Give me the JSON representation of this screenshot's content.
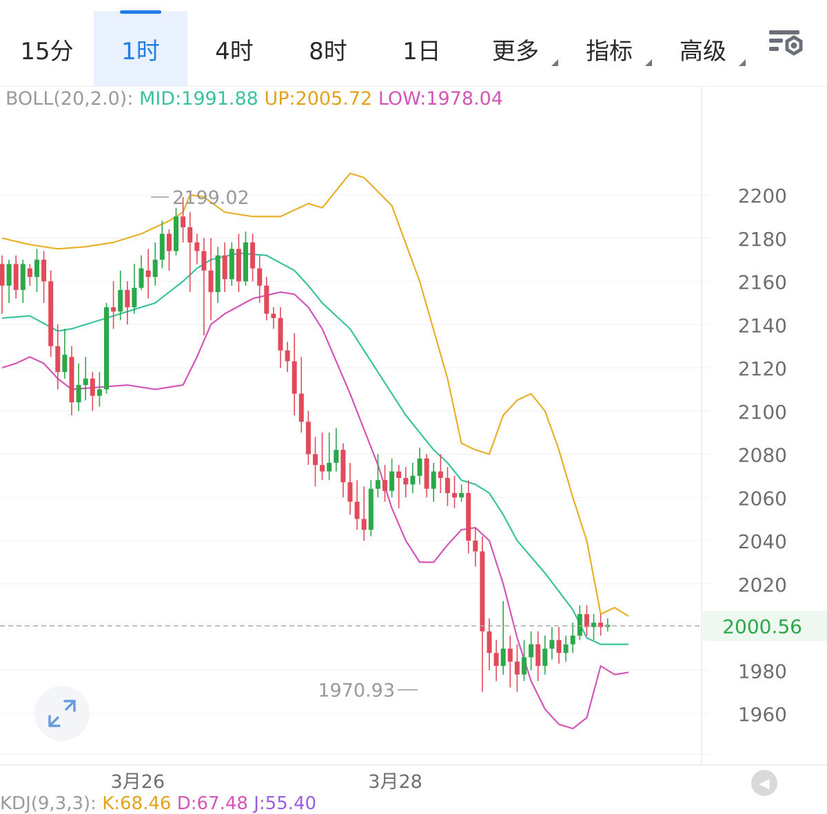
{
  "tabs": [
    {
      "label": "15分",
      "active": false,
      "dropdown": false
    },
    {
      "label": "1时",
      "active": true,
      "dropdown": false
    },
    {
      "label": "4时",
      "active": false,
      "dropdown": false
    },
    {
      "label": "8时",
      "active": false,
      "dropdown": false
    },
    {
      "label": "1日",
      "active": false,
      "dropdown": false
    },
    {
      "label": "更多",
      "active": false,
      "dropdown": true
    },
    {
      "label": "指标",
      "active": false,
      "dropdown": true
    },
    {
      "label": "高级",
      "active": false,
      "dropdown": true
    }
  ],
  "settings_icon": "chart-settings-icon",
  "indicator": {
    "name": "BOLL(20,2.0):",
    "mid": "MID:1991.88",
    "up": "UP:2005.72",
    "low": "LOW:1978.04"
  },
  "kdj": {
    "name": "KDJ(9,3,3):",
    "k": "K:68.46",
    "d": "D:67.48",
    "j": "J:55.40"
  },
  "colors": {
    "accent": "#1e7ee6",
    "up_candle": "#2aa84a",
    "down_candle": "#e04a5a",
    "mid_band": "#38c29e",
    "upper_band": "#e8b02a",
    "lower_band": "#d454b8",
    "current_price": "#2aa84a"
  },
  "chart_data": {
    "type": "candlestick",
    "ylim": [
      1946,
      2228
    ],
    "y_ticks": [
      2200,
      2180,
      2160,
      2140,
      2120,
      2100,
      2080,
      2060,
      2040,
      2020,
      1980,
      1960
    ],
    "x_labels": [
      {
        "index": 19,
        "label": "3月26"
      },
      {
        "index": 56,
        "label": "3月28"
      }
    ],
    "current_price": 2000.56,
    "current_price_label": "2000.56",
    "high_annotation": {
      "index": 21,
      "value": 2199.02,
      "label": "2199.02"
    },
    "low_annotation": {
      "index": 60,
      "value": 1970.93,
      "label": "1970.93"
    },
    "candles": [
      [
        2168,
        2158,
        2172,
        2145
      ],
      [
        2158,
        2168,
        2170,
        2150
      ],
      [
        2168,
        2156,
        2172,
        2152
      ],
      [
        2156,
        2168,
        2170,
        2150
      ],
      [
        2166,
        2162,
        2168,
        2158
      ],
      [
        2162,
        2170,
        2175,
        2155
      ],
      [
        2170,
        2160,
        2174,
        2150
      ],
      [
        2160,
        2130,
        2165,
        2125
      ],
      [
        2130,
        2118,
        2140,
        2110
      ],
      [
        2118,
        2126,
        2138,
        2115
      ],
      [
        2125,
        2104,
        2130,
        2098
      ],
      [
        2104,
        2112,
        2122,
        2100
      ],
      [
        2112,
        2115,
        2125,
        2105
      ],
      [
        2115,
        2107,
        2118,
        2100
      ],
      [
        2107,
        2110,
        2118,
        2102
      ],
      [
        2110,
        2148,
        2150,
        2108
      ],
      [
        2148,
        2146,
        2160,
        2138
      ],
      [
        2146,
        2156,
        2165,
        2142
      ],
      [
        2156,
        2148,
        2160,
        2140
      ],
      [
        2148,
        2157,
        2168,
        2145
      ],
      [
        2157,
        2166,
        2172,
        2156
      ],
      [
        2165,
        2162,
        2175,
        2152
      ],
      [
        2162,
        2170,
        2178,
        2158
      ],
      [
        2170,
        2182,
        2188,
        2166
      ],
      [
        2182,
        2174,
        2184,
        2165
      ],
      [
        2174,
        2190,
        2194,
        2172
      ],
      [
        2190,
        2185,
        2199,
        2178
      ],
      [
        2185,
        2178,
        2192,
        2155
      ],
      [
        2178,
        2174,
        2182,
        2168
      ],
      [
        2174,
        2165,
        2180,
        2135
      ],
      [
        2165,
        2155,
        2180,
        2142
      ],
      [
        2155,
        2172,
        2176,
        2150
      ],
      [
        2172,
        2161,
        2178,
        2155
      ],
      [
        2161,
        2175,
        2178,
        2158
      ],
      [
        2175,
        2160,
        2182,
        2155
      ],
      [
        2160,
        2178,
        2183,
        2158
      ],
      [
        2178,
        2166,
        2182,
        2160
      ],
      [
        2166,
        2158,
        2172,
        2150
      ],
      [
        2158,
        2145,
        2162,
        2142
      ],
      [
        2145,
        2143,
        2148,
        2138
      ],
      [
        2143,
        2128,
        2148,
        2120
      ],
      [
        2128,
        2123,
        2132,
        2118
      ],
      [
        2123,
        2108,
        2136,
        2098
      ],
      [
        2108,
        2095,
        2125,
        2090
      ],
      [
        2095,
        2080,
        2100,
        2075
      ],
      [
        2080,
        2075,
        2088,
        2065
      ],
      [
        2075,
        2072,
        2090,
        2068
      ],
      [
        2072,
        2076,
        2090,
        2068
      ],
      [
        2076,
        2082,
        2092,
        2072
      ],
      [
        2082,
        2067,
        2085,
        2060
      ],
      [
        2067,
        2058,
        2076,
        2052
      ],
      [
        2058,
        2050,
        2068,
        2045
      ],
      [
        2050,
        2045,
        2065,
        2040
      ],
      [
        2045,
        2064,
        2068,
        2042
      ],
      [
        2064,
        2068,
        2080,
        2060
      ],
      [
        2068,
        2063,
        2075,
        2058
      ],
      [
        2063,
        2072,
        2078,
        2060
      ],
      [
        2072,
        2069,
        2075,
        2055
      ],
      [
        2069,
        2066,
        2074,
        2060
      ],
      [
        2066,
        2070,
        2076,
        2062
      ],
      [
        2070,
        2078,
        2083,
        2066
      ],
      [
        2078,
        2064,
        2080,
        2060
      ],
      [
        2064,
        2072,
        2076,
        2058
      ],
      [
        2072,
        2069,
        2080,
        2062
      ],
      [
        2069,
        2062,
        2074,
        2056
      ],
      [
        2062,
        2060,
        2070,
        2055
      ],
      [
        2060,
        2062,
        2066,
        2058
      ],
      [
        2062,
        2040,
        2068,
        2034
      ],
      [
        2040,
        2035,
        2046,
        2028
      ],
      [
        2035,
        1998,
        2042,
        1970
      ],
      [
        1998,
        1988,
        2004,
        1980
      ],
      [
        1988,
        1982,
        1994,
        1975
      ],
      [
        1982,
        1990,
        2012,
        1978
      ],
      [
        1990,
        1984,
        1996,
        1972
      ],
      [
        1984,
        1978,
        1992,
        1970
      ],
      [
        1978,
        1986,
        1994,
        1975
      ],
      [
        1986,
        1992,
        1998,
        1980
      ],
      [
        1992,
        1982,
        1998,
        1975
      ],
      [
        1982,
        1990,
        1996,
        1978
      ],
      [
        1990,
        1994,
        2000,
        1985
      ],
      [
        1994,
        1988,
        2000,
        1983
      ],
      [
        1988,
        1992,
        1996,
        1984
      ],
      [
        1992,
        1996,
        2002,
        1988
      ],
      [
        1996,
        2006,
        2010,
        1994
      ],
      [
        2006,
        2000,
        2010,
        1996
      ],
      [
        2000,
        2002,
        2006,
        1994
      ],
      [
        2002,
        2000,
        2006,
        1996
      ],
      [
        2000,
        2001,
        2004,
        1998
      ]
    ],
    "series": [
      {
        "name": "UP",
        "color": "#e8b02a",
        "points": [
          [
            0,
            2180
          ],
          [
            4,
            2177
          ],
          [
            8,
            2175
          ],
          [
            12,
            2176
          ],
          [
            16,
            2178
          ],
          [
            20,
            2182
          ],
          [
            24,
            2188
          ],
          [
            26,
            2192
          ],
          [
            27,
            2200
          ],
          [
            29,
            2199
          ],
          [
            32,
            2192
          ],
          [
            36,
            2190
          ],
          [
            40,
            2190
          ],
          [
            42,
            2193
          ],
          [
            44,
            2196
          ],
          [
            46,
            2194
          ],
          [
            50,
            2210
          ],
          [
            52,
            2208
          ],
          [
            56,
            2195
          ],
          [
            60,
            2160
          ],
          [
            64,
            2115
          ],
          [
            66,
            2085
          ],
          [
            68,
            2082
          ],
          [
            70,
            2080
          ],
          [
            72,
            2098
          ],
          [
            74,
            2105
          ],
          [
            76,
            2108
          ],
          [
            78,
            2100
          ],
          [
            80,
            2082
          ],
          [
            82,
            2060
          ],
          [
            84,
            2040
          ],
          [
            86,
            2006
          ],
          [
            88,
            2009
          ],
          [
            90,
            2005
          ]
        ]
      },
      {
        "name": "MID",
        "color": "#38c29e",
        "points": [
          [
            0,
            2143
          ],
          [
            4,
            2144
          ],
          [
            8,
            2137
          ],
          [
            10,
            2138
          ],
          [
            14,
            2142
          ],
          [
            18,
            2146
          ],
          [
            22,
            2150
          ],
          [
            26,
            2160
          ],
          [
            28,
            2166
          ],
          [
            30,
            2170
          ],
          [
            34,
            2173
          ],
          [
            38,
            2172
          ],
          [
            42,
            2165
          ],
          [
            44,
            2158
          ],
          [
            46,
            2150
          ],
          [
            50,
            2138
          ],
          [
            54,
            2118
          ],
          [
            58,
            2098
          ],
          [
            62,
            2082
          ],
          [
            64,
            2076
          ],
          [
            66,
            2068
          ],
          [
            68,
            2066
          ],
          [
            70,
            2062
          ],
          [
            72,
            2052
          ],
          [
            74,
            2040
          ],
          [
            78,
            2025
          ],
          [
            82,
            2008
          ],
          [
            84,
            1995
          ],
          [
            86,
            1992
          ],
          [
            88,
            1992
          ],
          [
            90,
            1992
          ]
        ]
      },
      {
        "name": "LOW",
        "color": "#d454b8",
        "points": [
          [
            0,
            2120
          ],
          [
            2,
            2122
          ],
          [
            4,
            2125
          ],
          [
            6,
            2122
          ],
          [
            8,
            2115
          ],
          [
            10,
            2110
          ],
          [
            14,
            2111
          ],
          [
            18,
            2112
          ],
          [
            22,
            2110
          ],
          [
            26,
            2112
          ],
          [
            28,
            2125
          ],
          [
            30,
            2140
          ],
          [
            32,
            2145
          ],
          [
            36,
            2152
          ],
          [
            40,
            2155
          ],
          [
            42,
            2154
          ],
          [
            44,
            2148
          ],
          [
            46,
            2138
          ],
          [
            50,
            2108
          ],
          [
            54,
            2075
          ],
          [
            56,
            2055
          ],
          [
            58,
            2040
          ],
          [
            60,
            2030
          ],
          [
            62,
            2030
          ],
          [
            64,
            2038
          ],
          [
            66,
            2045
          ],
          [
            68,
            2046
          ],
          [
            70,
            2040
          ],
          [
            72,
            2020
          ],
          [
            74,
            1995
          ],
          [
            76,
            1975
          ],
          [
            78,
            1962
          ],
          [
            80,
            1955
          ],
          [
            82,
            1953
          ],
          [
            84,
            1958
          ],
          [
            86,
            1982
          ],
          [
            88,
            1978
          ],
          [
            90,
            1979
          ]
        ]
      }
    ]
  }
}
